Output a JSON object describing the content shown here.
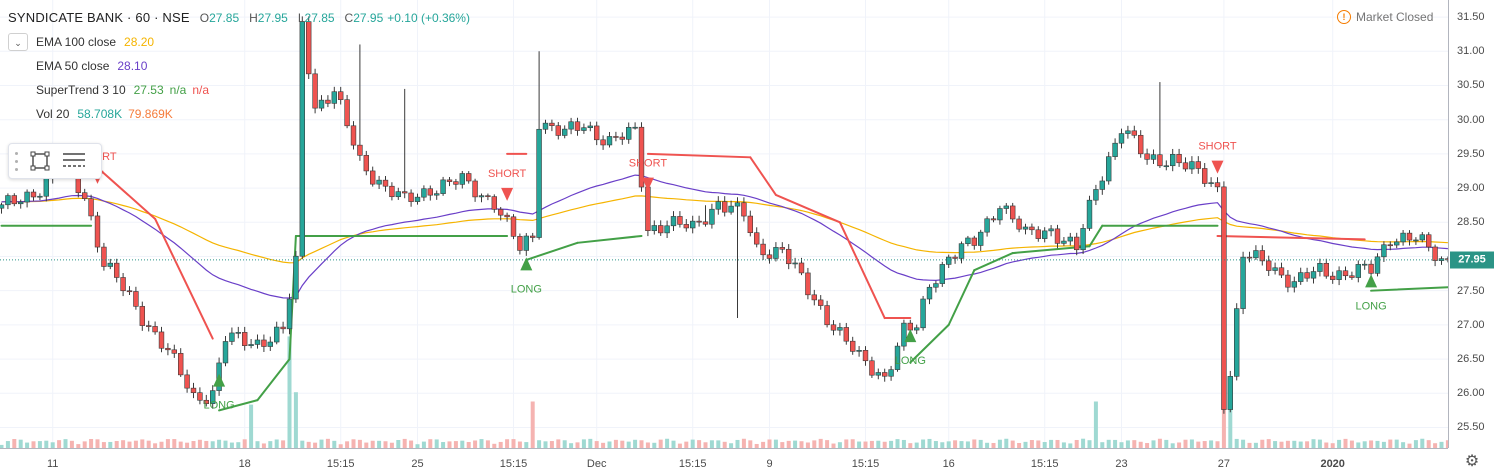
{
  "header": {
    "symbol_title": "SYNDICATE BANK · 60 · NSE",
    "ohlc": [
      {
        "label": "O",
        "value": "27.85"
      },
      {
        "label": "H",
        "value": "27.95"
      },
      {
        "label": "L",
        "value": "27.85"
      },
      {
        "label": "C",
        "value": "27.95"
      }
    ],
    "change": "+0.10 (+0.36%)"
  },
  "market_status": "Market Closed",
  "indicators": [
    {
      "name": "EMA 100 close",
      "values": [
        {
          "text": "28.20",
          "color": "#f5b400"
        }
      ]
    },
    {
      "name": "EMA 50 close",
      "values": [
        {
          "text": "28.10",
          "color": "#6a3fc8"
        }
      ]
    },
    {
      "name": "SuperTrend 3 10",
      "values": [
        {
          "text": "27.53",
          "color": "#43a047"
        },
        {
          "text": "n/a",
          "color": "#43a047"
        },
        {
          "text": "n/a",
          "color": "#ef5350"
        }
      ]
    },
    {
      "name": "Vol 20",
      "values": [
        {
          "text": "58.708K",
          "color": "#26a69a"
        },
        {
          "text": "79.869K",
          "color": "#f57c3c"
        }
      ]
    }
  ],
  "price_axis": {
    "ticks": [
      "31.50",
      "31.00",
      "30.50",
      "30.00",
      "29.50",
      "29.00",
      "28.50",
      "28.00",
      "27.50",
      "27.00",
      "26.50",
      "26.00",
      "25.50"
    ],
    "min": 25.2,
    "max": 31.75,
    "last_price": "27.95",
    "last_price_value": 27.95
  },
  "time_axis": {
    "labels": [
      {
        "text": "11",
        "i": 8
      },
      {
        "text": "18",
        "i": 38
      },
      {
        "text": "15:15",
        "i": 53
      },
      {
        "text": "25",
        "i": 65
      },
      {
        "text": "15:15",
        "i": 80
      },
      {
        "text": "Dec",
        "i": 93
      },
      {
        "text": "15:15",
        "i": 108
      },
      {
        "text": "9",
        "i": 120
      },
      {
        "text": "15:15",
        "i": 135
      },
      {
        "text": "16",
        "i": 148
      },
      {
        "text": "15:15",
        "i": 163
      },
      {
        "text": "23",
        "i": 175
      },
      {
        "text": "27",
        "i": 191
      },
      {
        "text": "2020",
        "i": 208,
        "bold": true
      }
    ]
  },
  "signals": [
    {
      "type": "SHORT",
      "i": 15,
      "price": 29.15
    },
    {
      "type": "LONG",
      "i": 34,
      "price": 26.2
    },
    {
      "type": "SHORT",
      "i": 79,
      "price": 28.9
    },
    {
      "type": "LONG",
      "i": 82,
      "price": 27.9
    },
    {
      "type": "SHORT",
      "i": 101,
      "price": 29.05
    },
    {
      "type": "LONG",
      "i": 142,
      "price": 26.85
    },
    {
      "type": "SHORT",
      "i": 190,
      "price": 29.3
    },
    {
      "type": "LONG",
      "i": 214,
      "price": 27.65
    }
  ],
  "colors": {
    "up": "#26a69a",
    "down": "#ef5350",
    "ema100": "#f5b400",
    "ema50": "#6a3fc8",
    "st_up": "#43a047",
    "st_down": "#ef5350"
  },
  "chart_data": {
    "type": "candlestick",
    "symbol": "SYNDICATE BANK",
    "interval": "60",
    "exchange": "NSE",
    "ylim": [
      25.2,
      31.75
    ],
    "anchors": [
      [
        0,
        28.7
      ],
      [
        6,
        29.0
      ],
      [
        10,
        29.3
      ],
      [
        13,
        28.9
      ],
      [
        16,
        27.9
      ],
      [
        20,
        27.4
      ],
      [
        26,
        26.6
      ],
      [
        30,
        25.95
      ],
      [
        33,
        26.0
      ],
      [
        35,
        26.8
      ],
      [
        40,
        26.75
      ],
      [
        44,
        26.9
      ],
      [
        46,
        27.9
      ],
      [
        47,
        31.4
      ],
      [
        49,
        30.2
      ],
      [
        52,
        30.4
      ],
      [
        56,
        29.4
      ],
      [
        60,
        29.0
      ],
      [
        63,
        28.8
      ],
      [
        67,
        29.0
      ],
      [
        72,
        29.1
      ],
      [
        77,
        28.8
      ],
      [
        81,
        28.1
      ],
      [
        83,
        28.3
      ],
      [
        84,
        30.0
      ],
      [
        88,
        29.8
      ],
      [
        91,
        29.9
      ],
      [
        95,
        29.7
      ],
      [
        99,
        29.8
      ],
      [
        101,
        28.4
      ],
      [
        104,
        28.5
      ],
      [
        108,
        28.4
      ],
      [
        112,
        28.8
      ],
      [
        116,
        28.6
      ],
      [
        118,
        28.1
      ],
      [
        122,
        28.1
      ],
      [
        126,
        27.5
      ],
      [
        130,
        27.0
      ],
      [
        134,
        26.5
      ],
      [
        138,
        26.25
      ],
      [
        141,
        26.9
      ],
      [
        143,
        26.95
      ],
      [
        145,
        27.6
      ],
      [
        148,
        28.0
      ],
      [
        152,
        28.2
      ],
      [
        156,
        28.8
      ],
      [
        160,
        28.3
      ],
      [
        164,
        28.4
      ],
      [
        168,
        28.1
      ],
      [
        171,
        29.0
      ],
      [
        175,
        29.9
      ],
      [
        179,
        29.4
      ],
      [
        183,
        29.45
      ],
      [
        187,
        29.2
      ],
      [
        190,
        29.0
      ],
      [
        191,
        25.9
      ],
      [
        192,
        26.3
      ],
      [
        194,
        28.0
      ],
      [
        198,
        27.9
      ],
      [
        202,
        27.6
      ],
      [
        206,
        27.8
      ],
      [
        210,
        27.75
      ],
      [
        214,
        27.8
      ],
      [
        217,
        28.3
      ],
      [
        221,
        28.25
      ],
      [
        225,
        27.95
      ],
      [
        226,
        27.95
      ]
    ],
    "spikes": [
      [
        56,
        31.1
      ],
      [
        63,
        30.45
      ],
      [
        84,
        31.0
      ],
      [
        110,
        28.75
      ],
      [
        115,
        27.1
      ],
      [
        181,
        30.55
      ],
      [
        191,
        25.7
      ]
    ],
    "st_levels": [
      [
        0,
        28.45,
        "up"
      ],
      [
        14,
        28.45,
        "up"
      ],
      [
        15,
        29.3,
        "down"
      ],
      [
        24,
        28.55,
        "down"
      ],
      [
        33,
        26.8,
        "down"
      ],
      [
        34,
        25.75,
        "up"
      ],
      [
        40,
        25.9,
        "up"
      ],
      [
        45,
        26.5,
        "up"
      ],
      [
        46,
        28.3,
        "up"
      ],
      [
        79,
        28.3,
        "up"
      ],
      [
        79,
        29.5,
        "down"
      ],
      [
        82,
        29.5,
        "down"
      ],
      [
        82,
        27.95,
        "up"
      ],
      [
        90,
        28.2,
        "up"
      ],
      [
        100,
        28.3,
        "up"
      ],
      [
        101,
        29.5,
        "down"
      ],
      [
        117,
        29.45,
        "down"
      ],
      [
        121,
        28.9,
        "down"
      ],
      [
        131,
        28.5,
        "down"
      ],
      [
        138,
        27.1,
        "down"
      ],
      [
        142,
        27.1,
        "down"
      ],
      [
        142,
        26.45,
        "up"
      ],
      [
        148,
        27.0,
        "up"
      ],
      [
        152,
        27.8,
        "up"
      ],
      [
        158,
        28.05,
        "up"
      ],
      [
        170,
        28.15,
        "up"
      ],
      [
        172,
        28.45,
        "up"
      ],
      [
        190,
        28.45,
        "up"
      ],
      [
        190,
        28.3,
        "down"
      ],
      [
        213,
        28.25,
        "down"
      ],
      [
        214,
        27.5,
        "up"
      ],
      [
        226,
        27.55,
        "up"
      ]
    ],
    "volume_spikes": [
      [
        39,
        0.7
      ],
      [
        45,
        1.8
      ],
      [
        46,
        0.9
      ],
      [
        83,
        0.75
      ],
      [
        171,
        0.75
      ],
      [
        191,
        2.0
      ],
      [
        192,
        1.0
      ]
    ]
  }
}
